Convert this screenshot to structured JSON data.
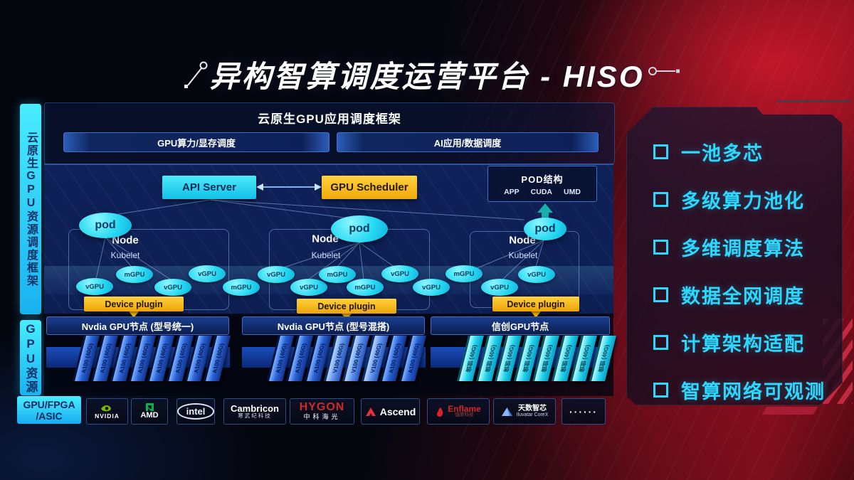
{
  "title": {
    "text": "异构智算调度运营平台 - HISO"
  },
  "sidebar": {
    "tab_top": "云原生GPU资源调度框架",
    "tab_bottom": "GPU资源"
  },
  "top_frame": {
    "title": "云原生GPU应用调度框架",
    "bars": [
      "GPU算力/显存调度",
      "AI应用/数据调度"
    ]
  },
  "control_plane": {
    "api_server": "API Server",
    "gpu_scheduler": "GPU Scheduler"
  },
  "pod_struct": {
    "title": "POD结构",
    "items": [
      "APP",
      "CUDA",
      "UMD"
    ]
  },
  "nodes": [
    {
      "pod": "pod",
      "label": "Node",
      "sub": "Kubelet"
    },
    {
      "pod": "pod",
      "label": "Node",
      "sub": "Kubelet"
    },
    {
      "pod": "pod",
      "label": "Node",
      "sub": "Kubelet"
    }
  ],
  "device_plugin": "Device plugin",
  "gpu_ellipses": [
    "vGPU",
    "mGPU",
    "vGPU",
    "vGPU",
    "mGPU",
    "vGPU",
    "vGPU",
    "mGPU",
    "mGPU",
    "vGPU",
    "vGPU",
    "mGPU",
    "vGPU",
    "vGPU"
  ],
  "gpu_groups": [
    {
      "header": "Nvdia GPU节点 (型号统一)",
      "cards": [
        {
          "label": "A100 (40G)",
          "variant": "blue"
        },
        {
          "label": "A100 (40G)",
          "variant": "blue"
        },
        {
          "label": "A100 (40G)",
          "variant": "blue"
        },
        {
          "label": "A100 (40G)",
          "variant": "blue"
        },
        {
          "label": "A100 (40G)",
          "variant": "blue"
        },
        {
          "label": "A100 (40G)",
          "variant": "blue"
        },
        {
          "label": "A100 (40G)",
          "variant": "blue"
        },
        {
          "label": "A100 (40G)",
          "variant": "blue"
        }
      ]
    },
    {
      "header": "Nvdia GPU节点 (型号混搭)",
      "cards": [
        {
          "label": "A100 (40G)",
          "variant": "blue"
        },
        {
          "label": "A100 (40G)",
          "variant": "blue"
        },
        {
          "label": "A100 (40G)",
          "variant": "blue"
        },
        {
          "label": "V100 (40G)",
          "variant": "light"
        },
        {
          "label": "V100 (40G)",
          "variant": "light"
        },
        {
          "label": "V100 (40G)",
          "variant": "light"
        },
        {
          "label": "A100 (40G)",
          "variant": "blue"
        },
        {
          "label": "A100 (40G)",
          "variant": "blue"
        }
      ]
    },
    {
      "header": "信创GPU节点",
      "cards": [
        {
          "label": "信创 (40G)",
          "variant": "cyan"
        },
        {
          "label": "信创 (40G)",
          "variant": "cyan"
        },
        {
          "label": "信创 (40G)",
          "variant": "cyan"
        },
        {
          "label": "信创 (40G)",
          "variant": "cyan"
        },
        {
          "label": "信创 (40G)",
          "variant": "cyan"
        },
        {
          "label": "信创 (40G)",
          "variant": "cyan"
        },
        {
          "label": "信创 (40G)",
          "variant": "cyan"
        },
        {
          "label": "信创 (40G)",
          "variant": "cyan"
        }
      ]
    }
  ],
  "vendors": {
    "chip_line1": "GPU/FPGA",
    "chip_line2": "/ASIC",
    "nvidia": "NVIDIA",
    "amd": "AMD",
    "intel": "intel",
    "cambricon": "Cambricon",
    "cambricon_sub": "寒武纪科技",
    "hygon": "HYGON",
    "hygon_sub": "中科海光",
    "ascend": "Ascend",
    "enflame": "Enflame",
    "enflame_sub": "燧原科技",
    "iluvatar": "天数智芯",
    "iluvatar_sub": "Iluvatar CoreX",
    "dots": "······"
  },
  "features": [
    "一池多芯",
    "多级算力池化",
    "多维调度算法",
    "数据全网调度",
    "计算架构适配",
    "智算网络可观测"
  ],
  "colors": {
    "accent_cyan": "#2fe0f8",
    "accent_yellow": "#ffc21f",
    "accent_red": "#b01225",
    "panel_blue": "#0d2258",
    "feature_cyan": "#2bd9ff"
  }
}
